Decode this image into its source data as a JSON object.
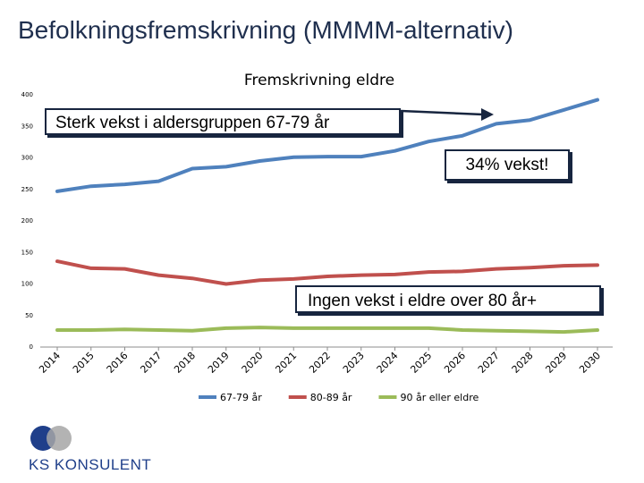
{
  "slide": {
    "title": "Befolkningsfremskrivning (MMMM-alternativ)"
  },
  "chart_data": {
    "type": "line",
    "title": "Fremskrivning eldre",
    "xlabel": "",
    "ylabel": "",
    "categories": [
      "2014",
      "2015",
      "2016",
      "2017",
      "2018",
      "2019",
      "2020",
      "2021",
      "2022",
      "2023",
      "2024",
      "2025",
      "2026",
      "2027",
      "2028",
      "2029",
      "2030"
    ],
    "ylim": [
      0,
      400
    ],
    "yticks": [
      0,
      50,
      100,
      150,
      200,
      250,
      300,
      350,
      400
    ],
    "grid": false,
    "legend": "bottom",
    "series": [
      {
        "name": "67-79 år",
        "color": "#4f81bd",
        "values": [
          247,
          255,
          258,
          263,
          283,
          286,
          295,
          301,
          302,
          302,
          311,
          326,
          335,
          354,
          360,
          376,
          392
        ]
      },
      {
        "name": "80-89 år",
        "color": "#c0504d",
        "values": [
          136,
          125,
          124,
          114,
          109,
          100,
          106,
          108,
          112,
          114,
          115,
          119,
          120,
          124,
          126,
          129,
          130
        ]
      },
      {
        "name": "90 år eller eldre",
        "color": "#9bbb59",
        "values": [
          27,
          27,
          28,
          27,
          26,
          30,
          31,
          30,
          30,
          30,
          30,
          30,
          27,
          26,
          25,
          24,
          27
        ]
      }
    ],
    "annotations": [
      "Sterk vekst i aldersgruppen 67-79 år",
      "34% vekst!",
      "Ingen vekst i eldre over 80 år+"
    ]
  },
  "logo": {
    "text": "KS KONSULENT",
    "colors": [
      "#1f3f8a",
      "#a6a6a6"
    ]
  }
}
